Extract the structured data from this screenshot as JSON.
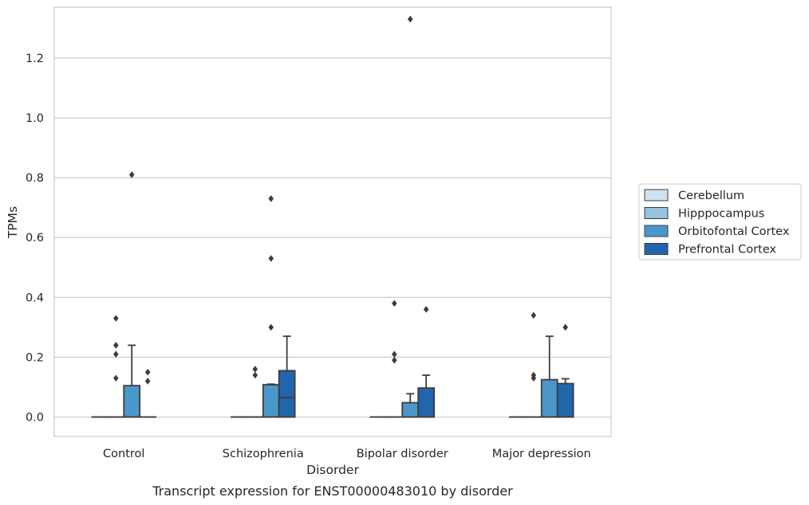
{
  "chart_data": {
    "type": "box",
    "caption": "Transcript expression for ENST00000483010 by disorder",
    "xlabel": "Disorder",
    "ylabel": "TPMs",
    "ylim": [
      -0.065,
      1.37
    ],
    "yticks": [
      "0.0",
      "0.2",
      "0.4",
      "0.6",
      "0.8",
      "1.0",
      "1.2"
    ],
    "grid": true,
    "legend_position": "right",
    "categories": [
      "Control",
      "Schizophrenia",
      "Bipolar disorder",
      "Major depression"
    ],
    "series": [
      {
        "name": "Cerebellum",
        "color": "#d0e1f2",
        "boxes": [
          {
            "q1": 0,
            "median": 0,
            "q3": 0,
            "whisker_low": 0,
            "whisker_high": 0,
            "outliers": []
          },
          {
            "q1": 0,
            "median": 0,
            "q3": 0,
            "whisker_low": 0,
            "whisker_high": 0,
            "outliers": []
          },
          {
            "q1": 0,
            "median": 0,
            "q3": 0,
            "whisker_low": 0,
            "whisker_high": 0,
            "outliers": []
          },
          {
            "q1": 0,
            "median": 0,
            "q3": 0,
            "whisker_low": 0,
            "whisker_high": 0,
            "outliers": []
          }
        ]
      },
      {
        "name": "Hipppocampus",
        "color": "#94c4df",
        "boxes": [
          {
            "q1": 0,
            "median": 0,
            "q3": 0,
            "whisker_low": 0,
            "whisker_high": 0,
            "outliers": [
              0.13,
              0.21,
              0.24,
              0.33
            ]
          },
          {
            "q1": 0,
            "median": 0,
            "q3": 0,
            "whisker_low": 0,
            "whisker_high": 0,
            "outliers": [
              0.14,
              0.16
            ]
          },
          {
            "q1": 0,
            "median": 0,
            "q3": 0,
            "whisker_low": 0,
            "whisker_high": 0,
            "outliers": [
              0.19,
              0.21,
              0.38
            ]
          },
          {
            "q1": 0,
            "median": 0,
            "q3": 0,
            "whisker_low": 0,
            "whisker_high": 0,
            "outliers": [
              0.13,
              0.14,
              0.34
            ]
          }
        ]
      },
      {
        "name": "Orbitofontal Cortex",
        "color": "#4a98c9",
        "boxes": [
          {
            "q1": 0,
            "median": 0,
            "q3": 0.105,
            "whisker_low": 0,
            "whisker_high": 0.24,
            "outliers": [
              0.81
            ]
          },
          {
            "q1": 0,
            "median": 0,
            "q3": 0.108,
            "whisker_low": 0,
            "whisker_high": 0.11,
            "outliers": [
              0.3,
              0.53,
              0.73
            ]
          },
          {
            "q1": 0,
            "median": 0,
            "q3": 0.048,
            "whisker_low": 0,
            "whisker_high": 0.078,
            "outliers": [
              1.33
            ]
          },
          {
            "q1": 0,
            "median": 0,
            "q3": 0.125,
            "whisker_low": 0,
            "whisker_high": 0.27,
            "outliers": []
          }
        ]
      },
      {
        "name": "Prefrontal Cortex",
        "color": "#2166ac",
        "boxes": [
          {
            "q1": 0,
            "median": 0,
            "q3": 0,
            "whisker_low": 0,
            "whisker_high": 0,
            "outliers": [
              0.12,
              0.15
            ]
          },
          {
            "q1": 0,
            "median": 0.065,
            "q3": 0.155,
            "whisker_low": 0,
            "whisker_high": 0.27,
            "outliers": []
          },
          {
            "q1": 0,
            "median": 0,
            "q3": 0.097,
            "whisker_low": 0,
            "whisker_high": 0.14,
            "outliers": [
              0.36
            ]
          },
          {
            "q1": 0,
            "median": 0,
            "q3": 0.112,
            "whisker_low": 0,
            "whisker_high": 0.128,
            "outliers": [
              0.3
            ]
          }
        ]
      }
    ]
  }
}
